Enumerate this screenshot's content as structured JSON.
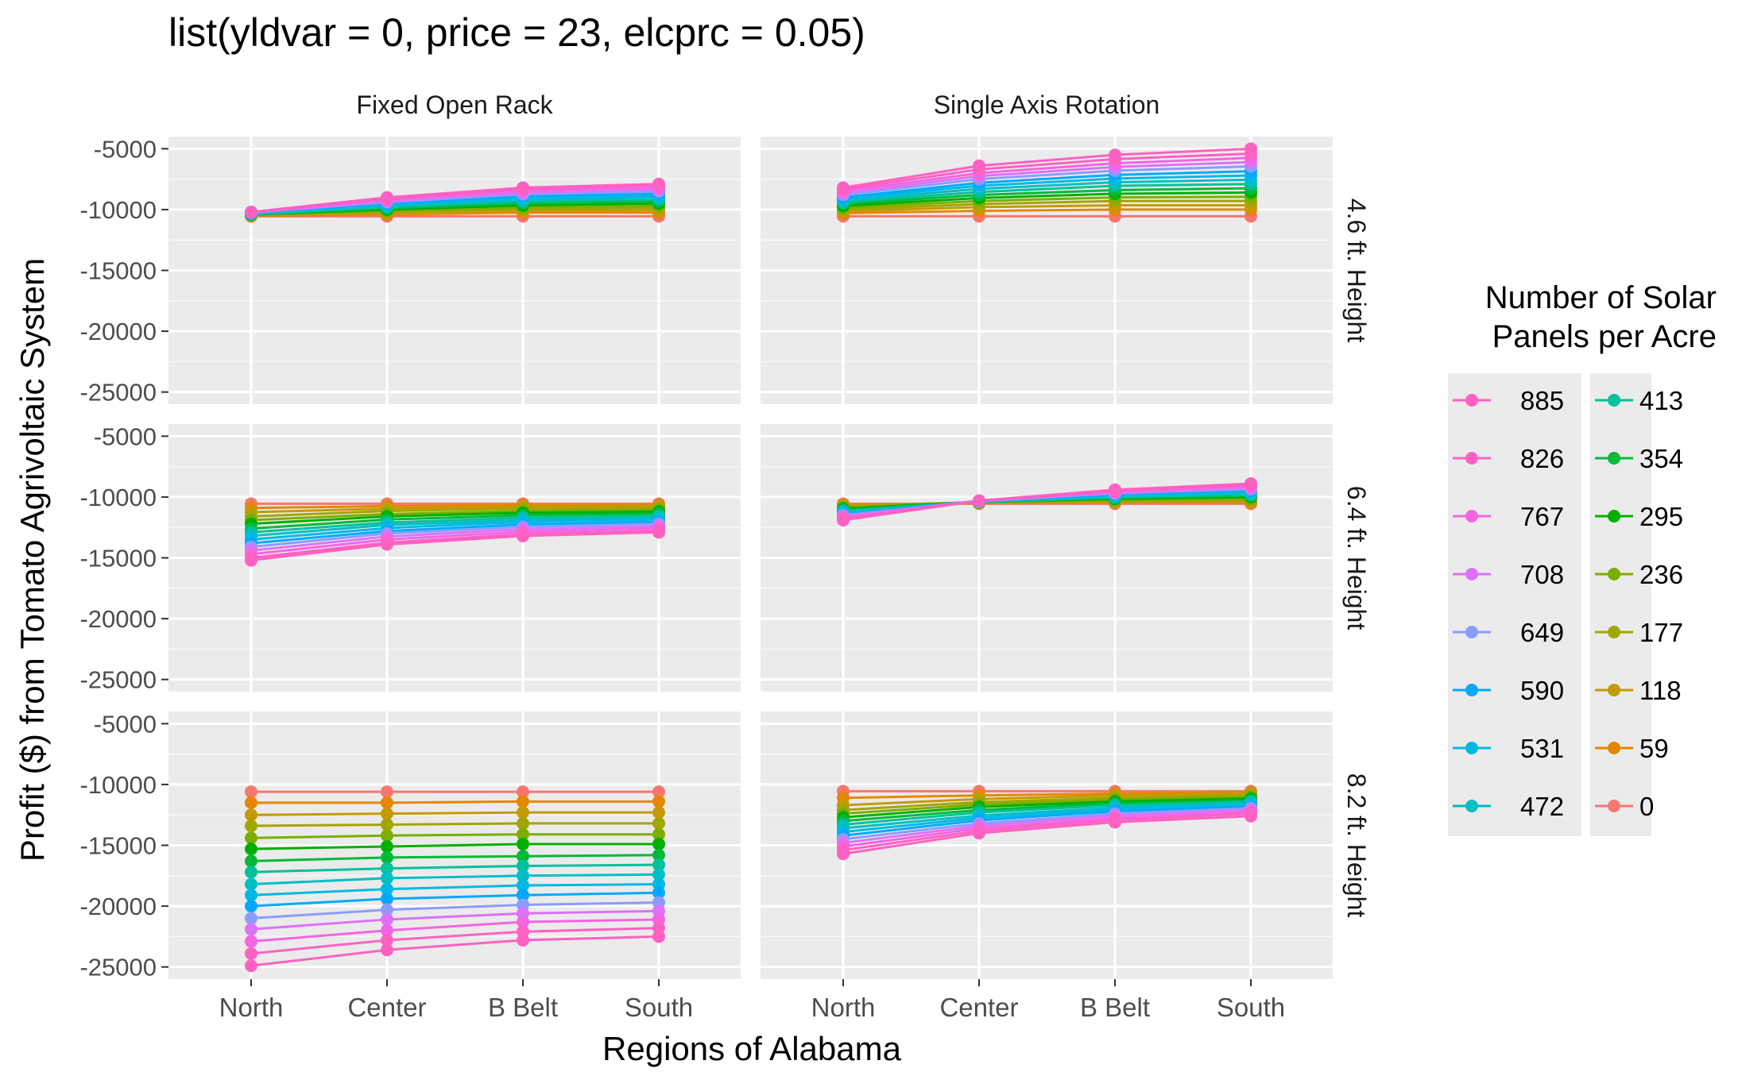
{
  "chart_data": {
    "type": "line",
    "title": "list(yldvar = 0, price = 23, elcprc = 0.05)",
    "xlabel": "Regions of Alabama",
    "ylabel": "Profit ($) from Tomato Agrivoltaic System",
    "categories": [
      "North",
      "Center",
      "B Belt",
      "South"
    ],
    "yticks": [
      -5000,
      -10000,
      -15000,
      -20000,
      -25000
    ],
    "ylim": [
      -26000,
      -4000
    ],
    "grid": true,
    "legend": {
      "title_line1": "Number of Solar",
      "title_line2": "Panels per Acre",
      "placement": "right",
      "entries": [
        {
          "label": "885",
          "color": "#FF61C3"
        },
        {
          "label": "826",
          "color": "#FF61C3"
        },
        {
          "label": "767",
          "color": "#F564E3"
        },
        {
          "label": "708",
          "color": "#DB72FB"
        },
        {
          "label": "649",
          "color": "#8C9BFF"
        },
        {
          "label": "590",
          "color": "#00A9FF"
        },
        {
          "label": "531",
          "color": "#00B9E3"
        },
        {
          "label": "472",
          "color": "#00BFC4"
        },
        {
          "label": "413",
          "color": "#00C19A"
        },
        {
          "label": "354",
          "color": "#00BA38"
        },
        {
          "label": "295",
          "color": "#00B000"
        },
        {
          "label": "236",
          "color": "#7CAE00"
        },
        {
          "label": "177",
          "color": "#A3A500"
        },
        {
          "label": "118",
          "color": "#C49A00"
        },
        {
          "label": "59",
          "color": "#E58700"
        },
        {
          "label": "0",
          "color": "#F8766D"
        }
      ]
    },
    "column_facets": [
      "Fixed Open Rack",
      "Single Axis Rotation"
    ],
    "row_facets": [
      "4.6 ft. Height",
      "6.4 ft. Height",
      "8.2 ft. Height"
    ],
    "panels": [
      {
        "column": "Fixed Open Rack",
        "row": "4.6 ft. Height",
        "series": [
          {
            "name": "885",
            "values": [
              -10200,
              -9000,
              -8200,
              -7900
            ]
          },
          {
            "name": "826",
            "values": [
              -10200,
              -9100,
              -8300,
              -8000
            ]
          },
          {
            "name": "767",
            "values": [
              -10200,
              -9200,
              -8450,
              -8200
            ]
          },
          {
            "name": "708",
            "values": [
              -10250,
              -9300,
              -8600,
              -8350
            ]
          },
          {
            "name": "649",
            "values": [
              -10250,
              -9400,
              -8750,
              -8500
            ]
          },
          {
            "name": "590",
            "values": [
              -10300,
              -9500,
              -8900,
              -8700
            ]
          },
          {
            "name": "531",
            "values": [
              -10300,
              -9600,
              -9050,
              -8850
            ]
          },
          {
            "name": "472",
            "values": [
              -10350,
              -9700,
              -9200,
              -9000
            ]
          },
          {
            "name": "413",
            "values": [
              -10350,
              -9800,
              -9350,
              -9200
            ]
          },
          {
            "name": "354",
            "values": [
              -10400,
              -9900,
              -9500,
              -9350
            ]
          },
          {
            "name": "295",
            "values": [
              -10400,
              -10000,
              -9650,
              -9500
            ]
          },
          {
            "name": "236",
            "values": [
              -10450,
              -10100,
              -9800,
              -9700
            ]
          },
          {
            "name": "177",
            "values": [
              -10450,
              -10200,
              -9950,
              -9850
            ]
          },
          {
            "name": "118",
            "values": [
              -10500,
              -10300,
              -10100,
              -10050
            ]
          },
          {
            "name": "59",
            "values": [
              -10500,
              -10400,
              -10250,
              -10250
            ]
          },
          {
            "name": "0",
            "values": [
              -10550,
              -10550,
              -10550,
              -10550
            ]
          }
        ]
      },
      {
        "column": "Single Axis Rotation",
        "row": "4.6 ft. Height",
        "series": [
          {
            "name": "885",
            "values": [
              -8200,
              -6400,
              -5500,
              -5000
            ]
          },
          {
            "name": "826",
            "values": [
              -8350,
              -6700,
              -5850,
              -5400
            ]
          },
          {
            "name": "767",
            "values": [
              -8500,
              -7000,
              -6200,
              -5750
            ]
          },
          {
            "name": "708",
            "values": [
              -8650,
              -7250,
              -6500,
              -6100
            ]
          },
          {
            "name": "649",
            "values": [
              -8800,
              -7500,
              -6800,
              -6450
            ]
          },
          {
            "name": "590",
            "values": [
              -9000,
              -7800,
              -7150,
              -6850
            ]
          },
          {
            "name": "531",
            "values": [
              -9100,
              -8050,
              -7450,
              -7200
            ]
          },
          {
            "name": "472",
            "values": [
              -9250,
              -8300,
              -7750,
              -7550
            ]
          },
          {
            "name": "413",
            "values": [
              -9400,
              -8550,
              -8050,
              -7900
            ]
          },
          {
            "name": "354",
            "values": [
              -9550,
              -8800,
              -8400,
              -8250
            ]
          },
          {
            "name": "295",
            "values": [
              -9700,
              -9050,
              -8700,
              -8600
            ]
          },
          {
            "name": "236",
            "values": [
              -9850,
              -9300,
              -9000,
              -8950
            ]
          },
          {
            "name": "177",
            "values": [
              -10000,
              -9550,
              -9300,
              -9300
            ]
          },
          {
            "name": "118",
            "values": [
              -10150,
              -9800,
              -9650,
              -9650
            ]
          },
          {
            "name": "59",
            "values": [
              -10300,
              -10100,
              -10000,
              -10000
            ]
          },
          {
            "name": "0",
            "values": [
              -10550,
              -10550,
              -10550,
              -10550
            ]
          }
        ]
      },
      {
        "column": "Fixed Open Rack",
        "row": "6.4 ft. Height",
        "series": [
          {
            "name": "885",
            "values": [
              -15200,
              -13900,
              -13200,
              -12900
            ]
          },
          {
            "name": "826",
            "values": [
              -15000,
              -13750,
              -13050,
              -12750
            ]
          },
          {
            "name": "767",
            "values": [
              -14700,
              -13500,
              -12850,
              -12550
            ]
          },
          {
            "name": "708",
            "values": [
              -14400,
              -13250,
              -12650,
              -12400
            ]
          },
          {
            "name": "649",
            "values": [
              -14100,
              -13000,
              -12450,
              -12200
            ]
          },
          {
            "name": "590",
            "values": [
              -13800,
              -12800,
              -12250,
              -12050
            ]
          },
          {
            "name": "531",
            "values": [
              -13500,
              -12550,
              -12050,
              -11850
            ]
          },
          {
            "name": "472",
            "values": [
              -13200,
              -12300,
              -11900,
              -11700
            ]
          },
          {
            "name": "413",
            "values": [
              -12900,
              -12100,
              -11700,
              -11550
            ]
          },
          {
            "name": "354",
            "values": [
              -12600,
              -11850,
              -11500,
              -11350
            ]
          },
          {
            "name": "295",
            "values": [
              -12200,
              -11600,
              -11300,
              -11200
            ]
          },
          {
            "name": "236",
            "values": [
              -11900,
              -11400,
              -11150,
              -11050
            ]
          },
          {
            "name": "177",
            "values": [
              -11600,
              -11150,
              -10950,
              -10900
            ]
          },
          {
            "name": "118",
            "values": [
              -11250,
              -10950,
              -10800,
              -10750
            ]
          },
          {
            "name": "59",
            "values": [
              -10900,
              -10750,
              -10650,
              -10650
            ]
          },
          {
            "name": "0",
            "values": [
              -10550,
              -10550,
              -10550,
              -10550
            ]
          }
        ]
      },
      {
        "column": "Single Axis Rotation",
        "row": "6.4 ft. Height",
        "series": [
          {
            "name": "885",
            "values": [
              -11900,
              -10300,
              -9400,
              -8900
            ]
          },
          {
            "name": "826",
            "values": [
              -11800,
              -10300,
              -9500,
              -9000
            ]
          },
          {
            "name": "767",
            "values": [
              -11700,
              -10300,
              -9550,
              -9100
            ]
          },
          {
            "name": "708",
            "values": [
              -11600,
              -10300,
              -9650,
              -9250
            ]
          },
          {
            "name": "649",
            "values": [
              -11500,
              -10350,
              -9700,
              -9350
            ]
          },
          {
            "name": "590",
            "values": [
              -11450,
              -10350,
              -9800,
              -9450
            ]
          },
          {
            "name": "531",
            "values": [
              -11350,
              -10350,
              -9850,
              -9550
            ]
          },
          {
            "name": "472",
            "values": [
              -11250,
              -10350,
              -9950,
              -9700
            ]
          },
          {
            "name": "413",
            "values": [
              -11150,
              -10400,
              -10000,
              -9800
            ]
          },
          {
            "name": "354",
            "values": [
              -11050,
              -10400,
              -10100,
              -9900
            ]
          },
          {
            "name": "295",
            "values": [
              -10950,
              -10400,
              -10150,
              -10000
            ]
          },
          {
            "name": "236",
            "values": [
              -10900,
              -10400,
              -10250,
              -10150
            ]
          },
          {
            "name": "177",
            "values": [
              -10800,
              -10450,
              -10300,
              -10250
            ]
          },
          {
            "name": "118",
            "values": [
              -10700,
              -10450,
              -10400,
              -10350
            ]
          },
          {
            "name": "59",
            "values": [
              -10650,
              -10500,
              -10450,
              -10450
            ]
          },
          {
            "name": "0",
            "values": [
              -10550,
              -10550,
              -10550,
              -10550
            ]
          }
        ]
      },
      {
        "column": "Fixed Open Rack",
        "row": "8.2 ft. Height",
        "series": [
          {
            "name": "885",
            "values": [
              -24900,
              -23600,
              -22800,
              -22500
            ]
          },
          {
            "name": "826",
            "values": [
              -23900,
              -22800,
              -22100,
              -21800
            ]
          },
          {
            "name": "767",
            "values": [
              -22900,
              -22000,
              -21300,
              -21100
            ]
          },
          {
            "name": "708",
            "values": [
              -21900,
              -21100,
              -20600,
              -20400
            ]
          },
          {
            "name": "649",
            "values": [
              -21000,
              -20300,
              -19900,
              -19700
            ]
          },
          {
            "name": "590",
            "values": [
              -20000,
              -19400,
              -19100,
              -18900
            ]
          },
          {
            "name": "531",
            "values": [
              -19100,
              -18600,
              -18300,
              -18200
            ]
          },
          {
            "name": "472",
            "values": [
              -18200,
              -17700,
              -17500,
              -17400
            ]
          },
          {
            "name": "413",
            "values": [
              -17200,
              -16900,
              -16700,
              -16600
            ]
          },
          {
            "name": "354",
            "values": [
              -16300,
              -16000,
              -15900,
              -15800
            ]
          },
          {
            "name": "295",
            "values": [
              -15300,
              -15100,
              -14900,
              -14900
            ]
          },
          {
            "name": "236",
            "values": [
              -14400,
              -14200,
              -14100,
              -14100
            ]
          },
          {
            "name": "177",
            "values": [
              -13400,
              -13300,
              -13200,
              -13200
            ]
          },
          {
            "name": "118",
            "values": [
              -12500,
              -12400,
              -12300,
              -12300
            ]
          },
          {
            "name": "59",
            "values": [
              -11500,
              -11500,
              -11400,
              -11400
            ]
          },
          {
            "name": "0",
            "values": [
              -10600,
              -10600,
              -10600,
              -10600
            ]
          }
        ]
      },
      {
        "column": "Single Axis Rotation",
        "row": "8.2 ft. Height",
        "series": [
          {
            "name": "885",
            "values": [
              -15700,
              -14000,
              -13100,
              -12600
            ]
          },
          {
            "name": "826",
            "values": [
              -15400,
              -13800,
              -12900,
              -12400
            ]
          },
          {
            "name": "767",
            "values": [
              -15100,
              -13600,
              -12750,
              -12250
            ]
          },
          {
            "name": "708",
            "values": [
              -14800,
              -13400,
              -12550,
              -12100
            ]
          },
          {
            "name": "649",
            "values": [
              -14500,
              -13200,
              -12400,
              -11950
            ]
          },
          {
            "name": "590",
            "values": [
              -14200,
              -12950,
              -12200,
              -11800
            ]
          },
          {
            "name": "531",
            "values": [
              -13900,
              -12750,
              -12050,
              -11700
            ]
          },
          {
            "name": "472",
            "values": [
              -13600,
              -12550,
              -11900,
              -11550
            ]
          },
          {
            "name": "413",
            "values": [
              -13300,
              -12300,
              -11700,
              -11400
            ]
          },
          {
            "name": "354",
            "values": [
              -13000,
              -12100,
              -11550,
              -11300
            ]
          },
          {
            "name": "295",
            "values": [
              -12700,
              -11850,
              -11400,
              -11150
            ]
          },
          {
            "name": "236",
            "values": [
              -12400,
              -11650,
              -11250,
              -11000
            ]
          },
          {
            "name": "177",
            "values": [
              -12100,
              -11450,
              -11100,
              -10900
            ]
          },
          {
            "name": "118",
            "values": [
              -11700,
              -11200,
              -10900,
              -10750
            ]
          },
          {
            "name": "59",
            "values": [
              -11100,
              -10900,
              -10750,
              -10650
            ]
          },
          {
            "name": "0",
            "values": [
              -10550,
              -10550,
              -10550,
              -10550
            ]
          }
        ]
      }
    ]
  }
}
